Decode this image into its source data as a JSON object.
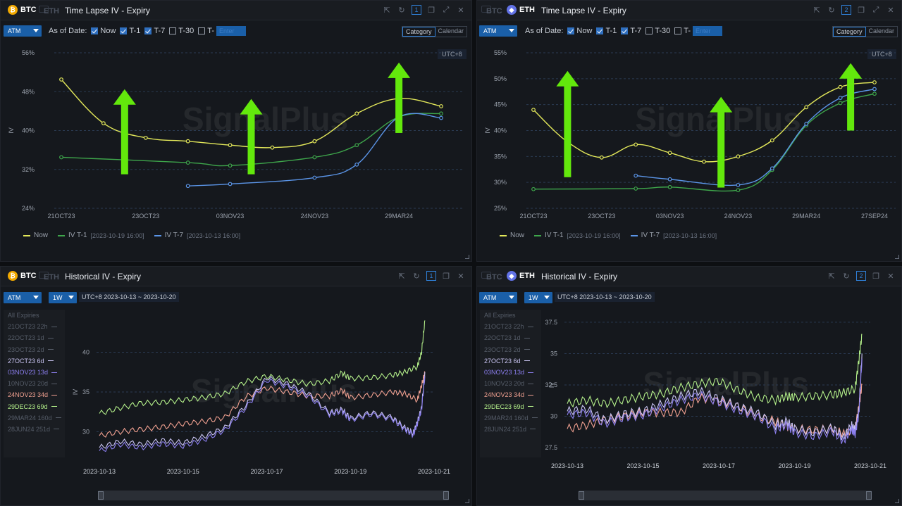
{
  "colors": {
    "now": "#e3e85a",
    "t1": "#3ea64b",
    "t7": "#5b95e8",
    "arrow": "#63e80c",
    "orange": "#f2a900",
    "purple": "#6272e6"
  },
  "top_left": {
    "coins": {
      "a": "BTC",
      "b": "ETH"
    },
    "title": "Time Lapse IV - Expiry",
    "window_num": "1",
    "atm_label": "ATM",
    "as_of_label": "As of Date:",
    "checks": [
      {
        "label": "Now",
        "checked": true
      },
      {
        "label": "T-1",
        "checked": true
      },
      {
        "label": "T-7",
        "checked": true
      },
      {
        "label": "T-30",
        "checked": false
      },
      {
        "label": "T-",
        "checked": false
      }
    ],
    "enter_placeholder": "Enter",
    "mode_tabs": [
      "Category",
      "Calendar"
    ],
    "tz": "UTC+8",
    "ylabel": "IV",
    "legend": [
      {
        "name": "Now",
        "ts": ""
      },
      {
        "name": "IV T-1",
        "ts": "[2023-10-19 16:00]"
      },
      {
        "name": "IV T-7",
        "ts": "[2023-10-13 16:00]"
      }
    ]
  },
  "top_right": {
    "coins": {
      "a": "BTC",
      "b": "ETH"
    },
    "title": "Time Lapse IV - Expiry",
    "window_num": "2",
    "atm_label": "ATM",
    "as_of_label": "As of Date:",
    "checks": [
      {
        "label": "Now",
        "checked": true
      },
      {
        "label": "T-1",
        "checked": true
      },
      {
        "label": "T-7",
        "checked": true
      },
      {
        "label": "T-30",
        "checked": false
      },
      {
        "label": "T-",
        "checked": false
      }
    ],
    "enter_placeholder": "Enter",
    "mode_tabs": [
      "Category",
      "Calendar"
    ],
    "tz": "UTC+8",
    "ylabel": "IV",
    "legend": [
      {
        "name": "Now",
        "ts": ""
      },
      {
        "name": "IV T-1",
        "ts": "[2023-10-19 16:00]"
      },
      {
        "name": "IV T-7",
        "ts": "[2023-10-13 16:00]"
      }
    ]
  },
  "bottom_left": {
    "coins": {
      "a": "BTC",
      "b": "ETH"
    },
    "title": "Historical IV - Expiry",
    "window_num": "1",
    "atm_label": "ATM",
    "period": "1W",
    "range": "UTC+8 2023-10-13 ~ 2023-10-20",
    "ylabel": "IV",
    "expiries": [
      {
        "label": "All Expiries",
        "color": "#555c68"
      },
      {
        "label": "21OCT23 22h",
        "color": "#555c68"
      },
      {
        "label": "22OCT23 1d",
        "color": "#555c68"
      },
      {
        "label": "23OCT23 2d",
        "color": "#555c68"
      },
      {
        "label": "27OCT23 6d",
        "color": "#c9c4f2"
      },
      {
        "label": "03NOV23 13d",
        "color": "#8c7ff0"
      },
      {
        "label": "10NOV23 20d",
        "color": "#555c68"
      },
      {
        "label": "24NOV23 34d",
        "color": "#f0a090"
      },
      {
        "label": "29DEC23 69d",
        "color": "#b4f08a"
      },
      {
        "label": "29MAR24 160d",
        "color": "#555c68"
      },
      {
        "label": "28JUN24 251d",
        "color": "#555c68"
      }
    ]
  },
  "bottom_right": {
    "coins": {
      "a": "BTC",
      "b": "ETH"
    },
    "title": "Historical IV - Expiry",
    "window_num": "2",
    "atm_label": "ATM",
    "period": "1W",
    "range": "UTC+8 2023-10-13 ~ 2023-10-20",
    "ylabel": "IV",
    "expiries": [
      {
        "label": "All Expiries",
        "color": "#555c68"
      },
      {
        "label": "21OCT23 22h",
        "color": "#555c68"
      },
      {
        "label": "22OCT23 1d",
        "color": "#555c68"
      },
      {
        "label": "23OCT23 2d",
        "color": "#555c68"
      },
      {
        "label": "27OCT23 6d",
        "color": "#c9c4f2"
      },
      {
        "label": "03NOV23 13d",
        "color": "#8c7ff0"
      },
      {
        "label": "10NOV23 20d",
        "color": "#555c68"
      },
      {
        "label": "24NOV23 34d",
        "color": "#f0a090"
      },
      {
        "label": "29DEC23 69d",
        "color": "#b4f08a"
      },
      {
        "label": "29MAR24 160d",
        "color": "#555c68"
      },
      {
        "label": "28JUN24 251d",
        "color": "#555c68"
      }
    ]
  },
  "chart_data": [
    {
      "id": "btc-timelapse",
      "type": "line",
      "title": "Time Lapse IV - Expiry",
      "ylabel": "IV",
      "yticks": [
        "56%",
        "48%",
        "40%",
        "32%",
        "24%"
      ],
      "ylim": [
        24,
        56
      ],
      "xticks": [
        "21OCT23",
        "23OCT23",
        "03NOV23",
        "24NOV23",
        "29MAR24"
      ],
      "x_count": 10,
      "xtick_positions": [
        0,
        2,
        4,
        6,
        8
      ],
      "series": [
        {
          "name": "Now",
          "x": [
            0,
            1,
            2,
            3,
            4,
            5,
            6,
            7,
            8,
            9
          ],
          "values": [
            50.5,
            41.5,
            38.5,
            37.8,
            37.0,
            36.5,
            37.8,
            43.5,
            46.6,
            45.0
          ]
        },
        {
          "name": "IV T-1",
          "x": [
            0,
            3,
            4,
            6,
            7,
            8,
            9
          ],
          "values": [
            34.5,
            33.4,
            32.8,
            34.5,
            37.0,
            42.8,
            43.5
          ]
        },
        {
          "name": "IV T-7",
          "x": [
            3,
            4,
            6,
            7,
            8,
            9
          ],
          "values": [
            28.6,
            29.0,
            30.3,
            33.0,
            42.8,
            42.6
          ]
        }
      ],
      "arrows": [
        {
          "x": 1.5,
          "from": 31.0,
          "to": 48.5
        },
        {
          "x": 4.5,
          "from": 31.0,
          "to": 46.5
        },
        {
          "x": 8.0,
          "from": 39.5,
          "to": 54.0
        }
      ]
    },
    {
      "id": "eth-timelapse",
      "type": "line",
      "title": "Time Lapse IV - Expiry",
      "ylabel": "IV",
      "yticks": [
        "55%",
        "50%",
        "45%",
        "40%",
        "35%",
        "30%",
        "25%"
      ],
      "ylim": [
        25,
        55
      ],
      "xticks": [
        "21OCT23",
        "23OCT23",
        "03NOV23",
        "24NOV23",
        "29MAR24",
        "27SEP24"
      ],
      "x_count": 11,
      "xtick_positions": [
        0,
        2,
        4,
        6,
        8,
        10
      ],
      "series": [
        {
          "name": "Now",
          "x": [
            0,
            1,
            2,
            3,
            4,
            5,
            6,
            7,
            8,
            9,
            10
          ],
          "values": [
            44.0,
            37.8,
            34.8,
            37.3,
            35.7,
            34.0,
            35.0,
            38.1,
            44.5,
            48.4,
            49.3
          ]
        },
        {
          "name": "IV T-1",
          "x": [
            0,
            3,
            4,
            6,
            7,
            8,
            9,
            10
          ],
          "values": [
            28.7,
            28.8,
            29.1,
            28.5,
            32.4,
            41.0,
            45.3,
            47.1
          ]
        },
        {
          "name": "IV T-7",
          "x": [
            3,
            4,
            6,
            7,
            8,
            9,
            10
          ],
          "values": [
            31.3,
            30.6,
            29.5,
            32.7,
            41.3,
            46.3,
            48.0
          ]
        }
      ],
      "arrows": [
        {
          "x": 1.0,
          "from": 31.0,
          "to": 51.5
        },
        {
          "x": 5.5,
          "from": 29.0,
          "to": 46.5
        },
        {
          "x": 9.3,
          "from": 40.0,
          "to": 53.0
        }
      ]
    },
    {
      "id": "btc-historical",
      "type": "line",
      "title": "Historical IV - Expiry",
      "ylabel": "IV",
      "yticks": [
        "40",
        "35",
        "30"
      ],
      "ylim": [
        26.5,
        43.5
      ],
      "xticks": [
        "2023-10-13",
        "2023-10-15",
        "2023-10-17",
        "2023-10-19",
        "2023-10-21"
      ],
      "xlim": [
        0,
        8
      ],
      "series": [
        {
          "name": "29DEC23 69d",
          "x": [
            0,
            0.5,
            1,
            1.5,
            2,
            2.5,
            3,
            3.5,
            4,
            4.5,
            5,
            5.5,
            5.8,
            6,
            6.5,
            7,
            7.3,
            7.6,
            7.7,
            7.78
          ],
          "values": [
            32.3,
            33.0,
            33.6,
            33.7,
            34.0,
            34.3,
            34.8,
            36.3,
            37.0,
            36.5,
            36.0,
            36.4,
            37.4,
            36.7,
            36.8,
            37.1,
            37.5,
            38.2,
            40.0,
            44.0
          ]
        },
        {
          "name": "24NOV23 34d",
          "x": [
            0,
            0.5,
            1,
            1.5,
            2,
            2.5,
            3,
            3.5,
            4,
            4.5,
            5,
            5.5,
            5.8,
            6,
            6.5,
            7,
            7.3,
            7.6,
            7.7,
            7.78
          ],
          "values": [
            29.5,
            30.0,
            30.3,
            30.6,
            31.0,
            31.3,
            31.8,
            34.4,
            35.5,
            35.0,
            34.5,
            34.5,
            35.2,
            34.3,
            34.6,
            35.0,
            34.8,
            34.0,
            35.8,
            37.5
          ]
        },
        {
          "name": "27OCT23 6d",
          "x": [
            0,
            0.5,
            1,
            1.5,
            2,
            2.5,
            3,
            3.5,
            4,
            4.5,
            5,
            5.5,
            5.8,
            6,
            6.5,
            7,
            7.3,
            7.5,
            7.6,
            7.7,
            7.78
          ],
          "values": [
            28.0,
            28.8,
            28.4,
            28.9,
            28.6,
            29.4,
            30.5,
            33.3,
            36.8,
            36.0,
            34.8,
            32.4,
            32.8,
            31.7,
            32.4,
            31.8,
            30.5,
            29.8,
            31.2,
            33.0,
            37.5
          ]
        },
        {
          "name": "03NOV23 13d",
          "x": [
            0,
            0.5,
            1,
            1.5,
            2,
            2.5,
            3,
            3.5,
            4,
            4.5,
            5,
            5.5,
            5.8,
            6,
            6.5,
            7,
            7.3,
            7.5,
            7.6,
            7.7,
            7.78
          ],
          "values": [
            27.6,
            28.4,
            28.0,
            28.5,
            28.2,
            29.0,
            30.2,
            33.0,
            36.5,
            35.7,
            34.5,
            32.2,
            32.6,
            31.5,
            32.2,
            31.6,
            30.3,
            29.6,
            31.0,
            32.8,
            37.0
          ]
        }
      ]
    },
    {
      "id": "eth-historical",
      "type": "line",
      "title": "Historical IV - Expiry",
      "ylabel": "IV",
      "yticks": [
        "37.5",
        "35",
        "32.5",
        "30",
        "27.5"
      ],
      "ylim": [
        27,
        38
      ],
      "xticks": [
        "2023-10-13",
        "2023-10-15",
        "2023-10-17",
        "2023-10-19",
        "2023-10-21"
      ],
      "xlim": [
        0,
        8
      ],
      "series": [
        {
          "name": "29DEC23 69d",
          "x": [
            0,
            0.5,
            1,
            1.5,
            2,
            2.5,
            3,
            3.5,
            4,
            4.5,
            5,
            5.5,
            5.8,
            6,
            6.5,
            7,
            7.3,
            7.6,
            7.7,
            7.78
          ],
          "values": [
            31.0,
            31.3,
            31.0,
            31.3,
            31.6,
            31.8,
            32.3,
            32.6,
            32.8,
            32.1,
            31.5,
            31.3,
            31.6,
            31.5,
            31.6,
            31.7,
            31.9,
            32.2,
            34.5,
            36.5
          ]
        },
        {
          "name": "24NOV23 34d",
          "x": [
            0,
            0.5,
            1,
            1.5,
            2,
            2.5,
            3,
            3.5,
            4,
            4.5,
            5,
            5.5,
            5.8,
            6,
            6.5,
            7,
            7.3,
            7.6,
            7.7,
            7.78
          ],
          "values": [
            29.0,
            29.3,
            29.7,
            30.0,
            30.3,
            30.3,
            30.3,
            31.5,
            31.2,
            30.8,
            30.0,
            29.6,
            29.2,
            29.0,
            28.9,
            29.0,
            28.6,
            29.0,
            30.8,
            32.5
          ]
        },
        {
          "name": "27OCT23 6d",
          "x": [
            0,
            0.5,
            1,
            1.5,
            2,
            2.5,
            3,
            3.5,
            4,
            4.5,
            5,
            5.5,
            5.8,
            6,
            6.5,
            7,
            7.3,
            7.5,
            7.6,
            7.7,
            7.78
          ],
          "values": [
            30.4,
            30.6,
            29.7,
            30.2,
            30.4,
            31.0,
            31.6,
            32.0,
            31.4,
            30.8,
            30.3,
            29.3,
            29.6,
            29.0,
            28.7,
            29.1,
            28.3,
            29.3,
            28.9,
            30.5,
            35.0
          ]
        },
        {
          "name": "03NOV23 13d",
          "x": [
            0,
            0.5,
            1,
            1.5,
            2,
            2.5,
            3,
            3.5,
            4,
            4.5,
            5,
            5.5,
            5.8,
            6,
            6.5,
            7,
            7.3,
            7.5,
            7.6,
            7.7,
            7.78
          ],
          "values": [
            30.1,
            30.3,
            29.4,
            29.9,
            30.1,
            30.7,
            31.3,
            31.7,
            31.1,
            30.5,
            30.0,
            29.0,
            29.3,
            28.7,
            28.4,
            28.8,
            28.0,
            29.0,
            28.6,
            30.2,
            34.6
          ]
        }
      ]
    }
  ]
}
